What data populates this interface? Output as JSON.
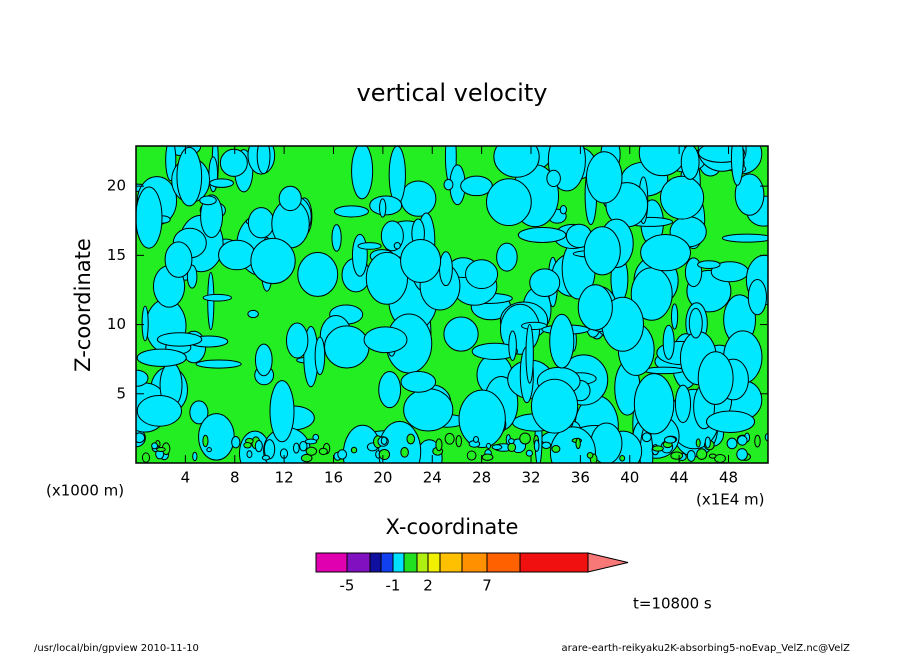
{
  "chart_data": {
    "type": "contour",
    "title": "vertical velocity",
    "x_label": "X-coordinate",
    "y_label": "Z-coordinate",
    "y_unit": "(x1000 m)",
    "x_unit": "(x1E4 m)",
    "xlim": [
      0,
      51.2
    ],
    "xticks": [
      4,
      8,
      12,
      16,
      20,
      24,
      28,
      32,
      36,
      40,
      44,
      48
    ],
    "ylim": [
      0,
      22.9
    ],
    "yticks": [
      5,
      10,
      15,
      20
    ],
    "colorbar": {
      "colors": [
        "#e000b0",
        "#8010c0",
        "#1010a0",
        "#1040f0",
        "#00e0ff",
        "#20e020",
        "#b0f010",
        "#f0f000",
        "#ffc000",
        "#ff9000",
        "#ff6000",
        "#f01010",
        "#f87878",
        "#ffb0b0"
      ],
      "ticks": [
        -5,
        -1,
        2,
        7
      ]
    },
    "time_label": "t=10800 s",
    "footer_left": "/usr/local/bin/gpview   2010-11-10",
    "footer_right": "arare-earth-reikyaku2K-absorbing5-noEvap_VelZ.nc@VelZ"
  }
}
